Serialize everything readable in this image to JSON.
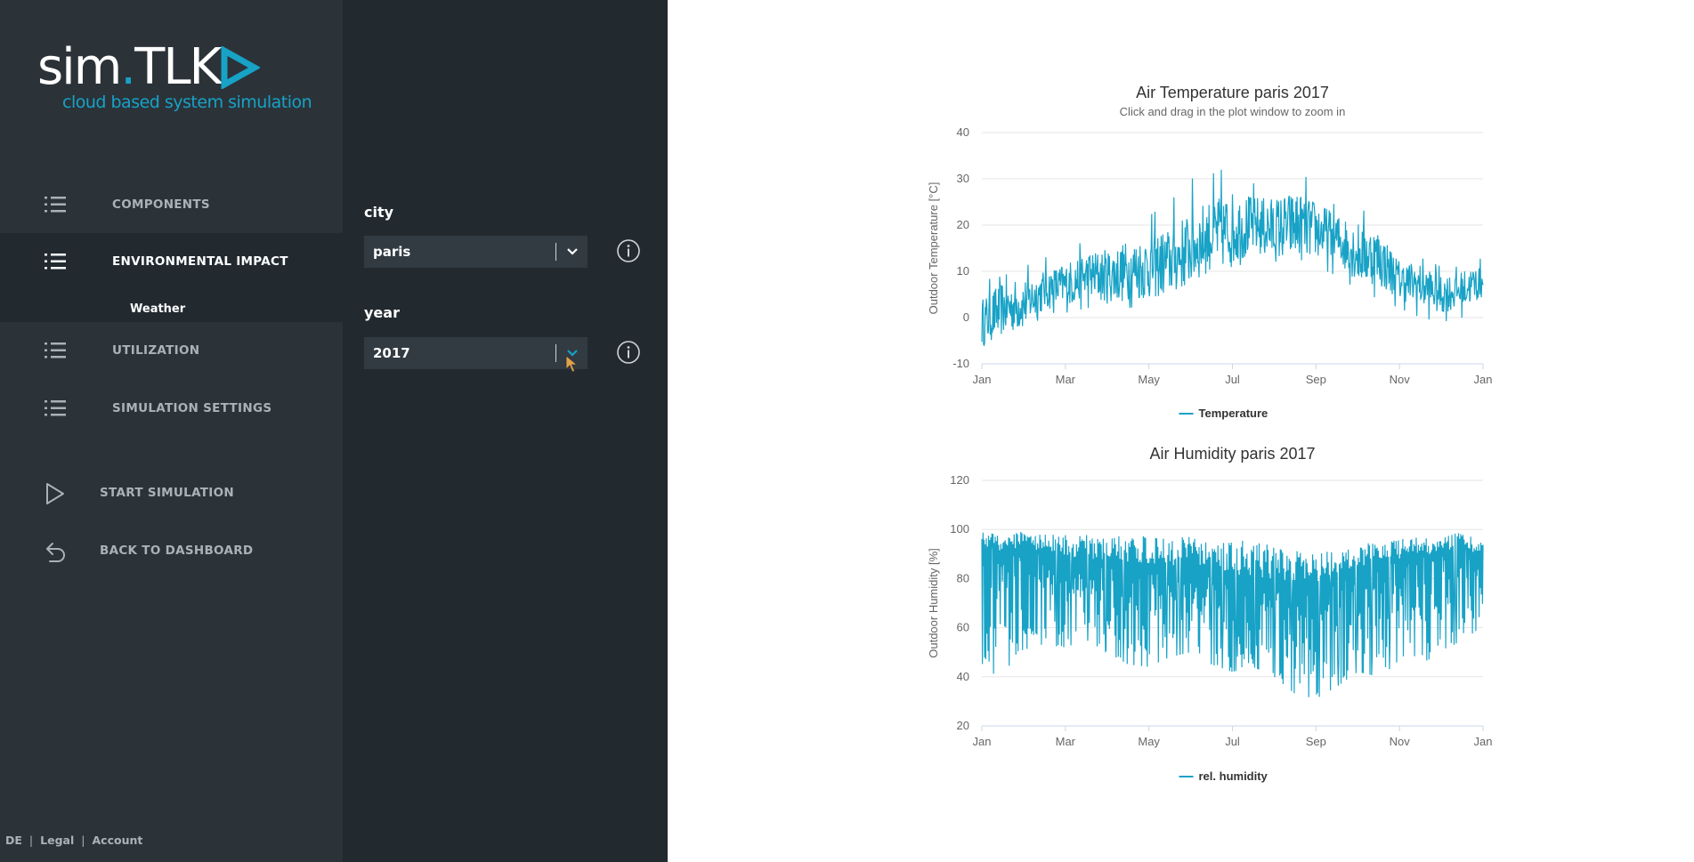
{
  "brand": {
    "name_part1": "sim",
    "name_dot": ".",
    "name_part2": "TLK",
    "tagline": "cloud based system simulation",
    "accent_color": "#17a2c6"
  },
  "sidebar": {
    "items": [
      {
        "label": "COMPONENTS",
        "icon": "list-icon"
      },
      {
        "label": "ENVIRONMENTAL IMPACT",
        "icon": "list-icon",
        "active": true,
        "sub": "Weather"
      },
      {
        "label": "UTILIZATION",
        "icon": "list-icon"
      },
      {
        "label": "SIMULATION SETTINGS",
        "icon": "list-icon"
      }
    ],
    "actions": [
      {
        "label": "START SIMULATION",
        "icon": "play-icon"
      },
      {
        "label": "BACK TO DASHBOARD",
        "icon": "back-arrow-icon"
      }
    ],
    "footer": {
      "lang": "DE",
      "legal": "Legal",
      "account": "Account",
      "sep": "|"
    }
  },
  "form": {
    "city": {
      "label": "city",
      "value": "paris"
    },
    "year": {
      "label": "year",
      "value": "2017"
    }
  },
  "chart_data": [
    {
      "type": "line",
      "title": "Air Temperature paris 2017",
      "subtitle": "Click and drag in the plot window to zoom in",
      "ylabel": "Outdoor Temperature [°C]",
      "xlabel": "",
      "ylim": [
        -10,
        40
      ],
      "yticks": [
        40,
        30,
        20,
        10,
        0,
        -10
      ],
      "xticks": [
        "Jan",
        "Mar",
        "May",
        "Jul",
        "Sep",
        "Nov",
        "Jan"
      ],
      "legend": "bottom-center",
      "grid": true,
      "color": "#17a2c6",
      "series": [
        {
          "name": "Temperature",
          "x_month_start": [
            0,
            0.5,
            1,
            1.5,
            2,
            2.5,
            3,
            3.5,
            4,
            4.5,
            5,
            5.5,
            6,
            6.5,
            7,
            7.5,
            8,
            8.5,
            9,
            9.5,
            10,
            10.5,
            11,
            11.5,
            12
          ],
          "values": [
            -1,
            2,
            3,
            6,
            7,
            9,
            9,
            10,
            11,
            12,
            15,
            18,
            19,
            20,
            19,
            20,
            19,
            17,
            14,
            13,
            8,
            7,
            5,
            6,
            8
          ],
          "min": [
            -6,
            -7,
            -4,
            1,
            1,
            2,
            3,
            2,
            3,
            5,
            8,
            10,
            11,
            12,
            12,
            13,
            11,
            9,
            6,
            4,
            2,
            0,
            -1,
            0,
            2
          ],
          "max": [
            8,
            9,
            11,
            13,
            14,
            17,
            19,
            20,
            22,
            25,
            30,
            31,
            33,
            29,
            31,
            33,
            28,
            24,
            24,
            21,
            14,
            13,
            11,
            11,
            13
          ]
        }
      ]
    },
    {
      "type": "line",
      "title": "Air Humidity paris 2017",
      "ylabel": "Outdoor Humidity [%]",
      "xlabel": "",
      "ylim": [
        20,
        120
      ],
      "yticks": [
        120,
        100,
        80,
        60,
        40,
        20
      ],
      "xticks": [
        "Jan",
        "Mar",
        "May",
        "Jul",
        "Sep",
        "Nov",
        "Jan"
      ],
      "legend": "bottom-center",
      "grid": true,
      "color": "#17a2c6",
      "series": [
        {
          "name": "rel. humidity",
          "x_month_start": [
            0,
            0.5,
            1,
            1.5,
            2,
            2.5,
            3,
            3.5,
            4,
            4.5,
            5,
            5.5,
            6,
            6.5,
            7,
            7.5,
            8,
            8.5,
            9,
            9.5,
            10,
            10.5,
            11,
            11.5,
            12
          ],
          "values": [
            90,
            85,
            88,
            86,
            82,
            80,
            80,
            78,
            78,
            76,
            78,
            76,
            72,
            70,
            70,
            68,
            70,
            74,
            78,
            80,
            82,
            84,
            86,
            88,
            84
          ],
          "min": [
            39,
            43,
            48,
            53,
            52,
            55,
            50,
            45,
            44,
            48,
            50,
            45,
            42,
            44,
            40,
            33,
            31,
            36,
            42,
            40,
            46,
            45,
            50,
            55,
            60
          ],
          "max": [
            99,
            99,
            99,
            98,
            98,
            98,
            97,
            98,
            97,
            97,
            97,
            96,
            95,
            96,
            93,
            92,
            90,
            92,
            94,
            95,
            96,
            97,
            97,
            99,
            95
          ]
        }
      ]
    }
  ]
}
